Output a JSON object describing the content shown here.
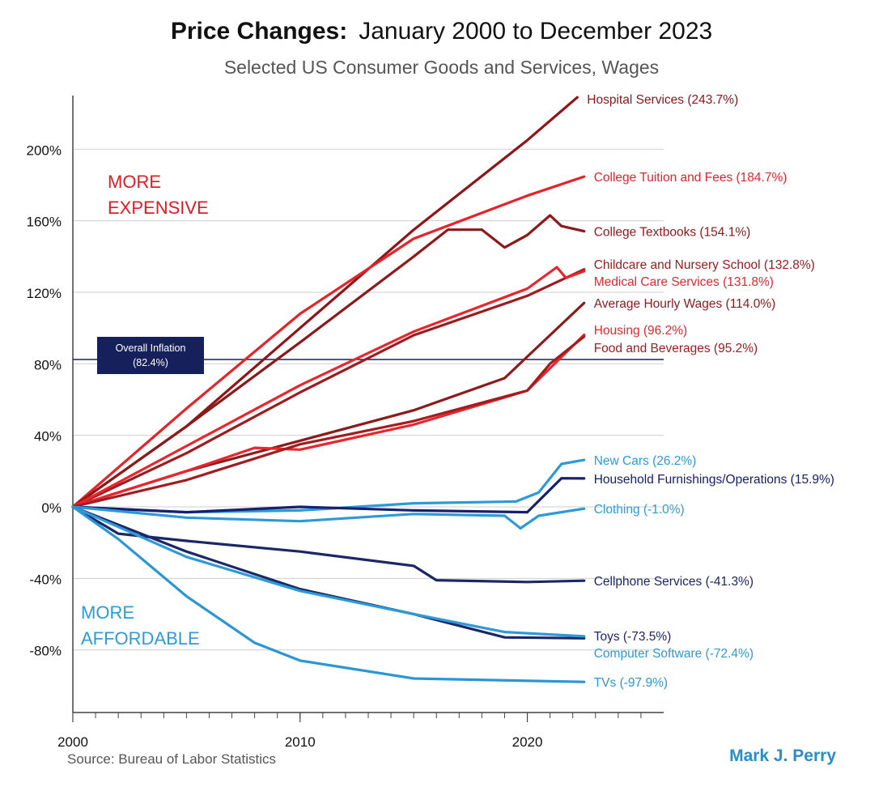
{
  "chart_data": {
    "type": "line",
    "title": "Price Changes:",
    "title_range": "January 2000 to December 2023",
    "subtitle": "Selected US Consumer Goods and Services, Wages",
    "source": "Source: Bureau of Labor Statistics",
    "author": "Mark J. Perry",
    "xlim": [
      2000,
      2026
    ],
    "ylim": [
      -115,
      230
    ],
    "x_ticks": [
      2000,
      2010,
      2020
    ],
    "y_ticks": [
      -80,
      -40,
      0,
      40,
      80,
      120,
      160,
      200
    ],
    "y_tick_labels": [
      "-80%",
      "-40%",
      "0%",
      "40%",
      "80%",
      "120%",
      "160%",
      "200%"
    ],
    "grid": "horizontal",
    "region_labels": {
      "more_expensive": [
        "MORE",
        "EXPENSIVE"
      ],
      "more_affordable": [
        "MORE",
        "AFFORDABLE"
      ]
    },
    "colors": {
      "region_expensive": "#e11b22",
      "region_affordable": "#2f9ad6",
      "author": "#2a8dc5",
      "inflation_box": "#16205a"
    },
    "reference_line": {
      "label_line1": "Overall Inflation",
      "label_line2": "(82.4%)",
      "value": 82.4
    },
    "series": [
      {
        "name": "Hospital Services (243.7%)",
        "color": "#8e1518",
        "final": 243.7,
        "x": [
          2000,
          2005,
          2010,
          2015,
          2020,
          2022.2
        ],
        "y": [
          0,
          45,
          100,
          155,
          205,
          229
        ]
      },
      {
        "name": "College Tuition and Fees (184.7%)",
        "color": "#e4232b",
        "final": 184.7,
        "x": [
          2000,
          2005,
          2010,
          2015,
          2020,
          2022.5
        ],
        "y": [
          0,
          55,
          108,
          150,
          174,
          184.7
        ]
      },
      {
        "name": "College Textbooks (154.1%)",
        "color": "#8b1a1a",
        "final": 154.1,
        "x": [
          2000,
          2005,
          2010,
          2015,
          2016.5,
          2018,
          2019,
          2020,
          2021,
          2021.5,
          2022.5
        ],
        "y": [
          0,
          45,
          92,
          140,
          155,
          155,
          145,
          152,
          163,
          157,
          154.1
        ]
      },
      {
        "name": "Childcare and Nursery School (132.8%)",
        "color": "#9c1c20",
        "final": 132.8,
        "x": [
          2000,
          2005,
          2010,
          2015,
          2020,
          2022.5
        ],
        "y": [
          0,
          30,
          64,
          96,
          118,
          132.8
        ]
      },
      {
        "name": "Medical Care Services (131.8%)",
        "color": "#e8262e",
        "final": 131.8,
        "x": [
          2000,
          2005,
          2010,
          2015,
          2020,
          2021.3,
          2021.7,
          2022.5
        ],
        "y": [
          0,
          34,
          68,
          98,
          122,
          134,
          128,
          131.8
        ]
      },
      {
        "name": "Average Hourly Wages (114.0%)",
        "color": "#8a1c1c",
        "final": 114.0,
        "x": [
          2000,
          2005,
          2010,
          2015,
          2019,
          2020,
          2022.5
        ],
        "y": [
          0,
          20,
          37,
          54,
          72,
          84,
          114
        ]
      },
      {
        "name": "Housing (96.2%)",
        "color": "#e9252d",
        "final": 96.2,
        "x": [
          2000,
          2005,
          2008,
          2010,
          2015,
          2020,
          2022.5
        ],
        "y": [
          0,
          20,
          33,
          32,
          46,
          65,
          96.2
        ]
      },
      {
        "name": "Food and Beverages (95.2%)",
        "color": "#a11d1f",
        "final": 95.2,
        "x": [
          2000,
          2005,
          2010,
          2015,
          2020,
          2021,
          2022.5
        ],
        "y": [
          0,
          15,
          35,
          48,
          65,
          80,
          95.2
        ]
      },
      {
        "name": "New Cars (26.2%)",
        "color": "#2d9ad8",
        "final": 26.2,
        "x": [
          2000,
          2005,
          2010,
          2015,
          2019.5,
          2020.5,
          2021.5,
          2022.5
        ],
        "y": [
          0,
          -3,
          -2,
          2,
          3,
          8,
          24,
          26.2
        ]
      },
      {
        "name": "Household Furnishings/Operations (15.9%)",
        "color": "#17206a",
        "final": 15.9,
        "x": [
          2000,
          2005,
          2010,
          2015,
          2020,
          2021.5,
          2022.5
        ],
        "y": [
          0,
          -3,
          0,
          -2,
          -3,
          16,
          15.9
        ]
      },
      {
        "name": "Clothing (-1.0%)",
        "color": "#2d9ad8",
        "final": -1.0,
        "x": [
          2000,
          2005,
          2010,
          2015,
          2019,
          2019.7,
          2020.5,
          2022.5
        ],
        "y": [
          0,
          -6,
          -8,
          -4,
          -5,
          -12,
          -5,
          -1
        ]
      },
      {
        "name": "Cellphone Services (-41.3%)",
        "color": "#1b2766",
        "final": -41.3,
        "x": [
          2000,
          2002,
          2005,
          2010,
          2015,
          2016,
          2020,
          2022.5
        ],
        "y": [
          0,
          -15,
          -19,
          -25,
          -33,
          -41,
          -42,
          -41.3
        ]
      },
      {
        "name": "Toys (-73.5%)",
        "color": "#1b2766",
        "final": -73.5,
        "x": [
          2000,
          2005,
          2010,
          2015,
          2019,
          2022.5
        ],
        "y": [
          0,
          -25,
          -46,
          -60,
          -73,
          -73.5
        ]
      },
      {
        "name": "Computer Software (-72.4%)",
        "color": "#2d9ad8",
        "final": -72.4,
        "x": [
          2000,
          2005,
          2010,
          2015,
          2019,
          2022.5
        ],
        "y": [
          0,
          -28,
          -47,
          -60,
          -70,
          -72.4
        ]
      },
      {
        "name": "TVs (-97.9%)",
        "color": "#2a96d4",
        "final": -97.9,
        "x": [
          2000,
          2002,
          2005,
          2008,
          2010,
          2015,
          2022.5
        ],
        "y": [
          0,
          -18,
          -50,
          -76,
          -86,
          -96,
          -97.9
        ]
      }
    ]
  }
}
